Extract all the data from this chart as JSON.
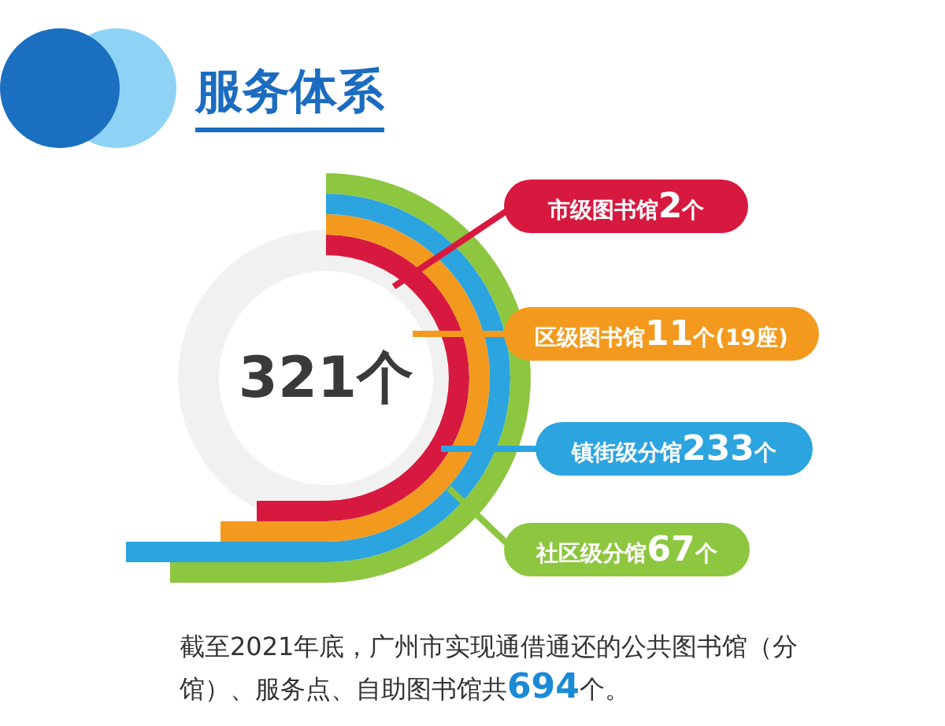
{
  "chart_data": {
    "type": "other",
    "title": "服务体系",
    "categories": [
      "市级图书馆",
      "区级图书馆",
      "镇街级分馆",
      "社区级分馆"
    ],
    "values": [
      2,
      11,
      233,
      67
    ],
    "value_labels": [
      "2个",
      "11个(19座)",
      "233个",
      "67个"
    ],
    "colors": [
      "#d8193f",
      "#f39a1e",
      "#2ba4e0",
      "#8dc63f"
    ],
    "annotations": [
      "321个",
      "截至2021年底，广州市实现通借通还的公共图书馆（分馆）、服务点、自助图书馆共694个。"
    ]
  }
}
